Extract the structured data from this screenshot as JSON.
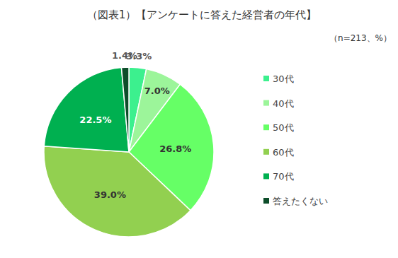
{
  "chart_data": {
    "type": "pie",
    "title": "（図表1）【アンケートに答えた経営者の年代】",
    "subtitle": "（n=213、%）",
    "categories": [
      "30代",
      "40代",
      "50代",
      "60代",
      "70代",
      "答えたくない"
    ],
    "values": [
      3.3,
      7.0,
      26.8,
      39.0,
      22.5,
      1.4
    ],
    "value_labels": [
      "3.3%",
      "7.0%",
      "26.8%",
      "39.0%",
      "22.5%",
      "1.4%"
    ],
    "colors": [
      "#3cf08e",
      "#9cf59a",
      "#66ff66",
      "#92d050",
      "#00b050",
      "#0d4d2a"
    ],
    "data_labels": true,
    "legend": "right"
  }
}
